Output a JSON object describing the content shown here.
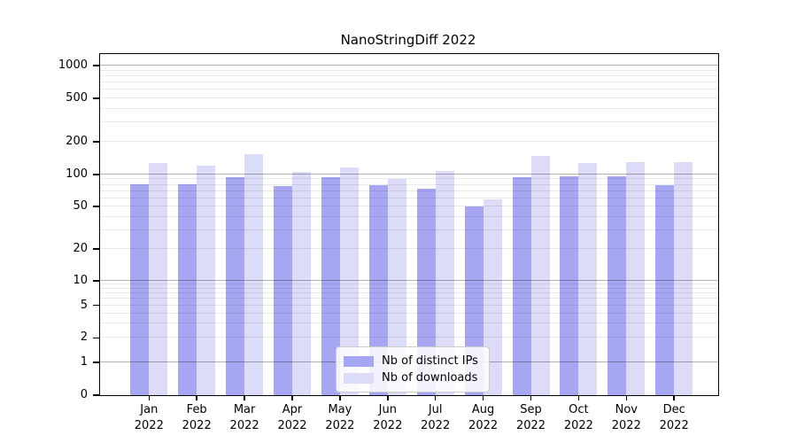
{
  "title": "NanoStringDiff 2022",
  "chart_data": {
    "type": "bar",
    "title": "NanoStringDiff 2022",
    "x": {
      "months": [
        "Jan",
        "Feb",
        "Mar",
        "Apr",
        "May",
        "Jun",
        "Jul",
        "Aug",
        "Sep",
        "Oct",
        "Nov",
        "Dec"
      ],
      "year": "2022"
    },
    "categories": [
      "Jan 2022",
      "Feb 2022",
      "Mar 2022",
      "Apr 2022",
      "May 2022",
      "Jun 2022",
      "Jul 2022",
      "Aug 2022",
      "Sep 2022",
      "Oct 2022",
      "Nov 2022",
      "Dec 2022"
    ],
    "series": [
      {
        "name": "Nb of distinct IPs",
        "key": "distinct-ips",
        "color": "#a6a6f2",
        "values": [
          81,
          81,
          94,
          78,
          95,
          79,
          74,
          50,
          95,
          96,
          96,
          80
        ]
      },
      {
        "name": "Nb of downloads",
        "key": "downloads",
        "color": "#dcdcf8",
        "values": [
          127,
          121,
          155,
          105,
          116,
          90,
          108,
          58,
          148,
          128,
          131,
          131
        ]
      }
    ],
    "y_axis": {
      "scale": "symlog",
      "tick_labels": [
        0,
        1,
        2,
        5,
        10,
        20,
        50,
        100,
        200,
        500,
        1000
      ],
      "major_gridlines": [
        1,
        10,
        100,
        1000
      ],
      "ylim": [
        0,
        1300
      ]
    },
    "legend": {
      "position": "lower center",
      "entries": [
        "Nb of distinct IPs",
        "Nb of downloads"
      ]
    },
    "grid": "on"
  }
}
